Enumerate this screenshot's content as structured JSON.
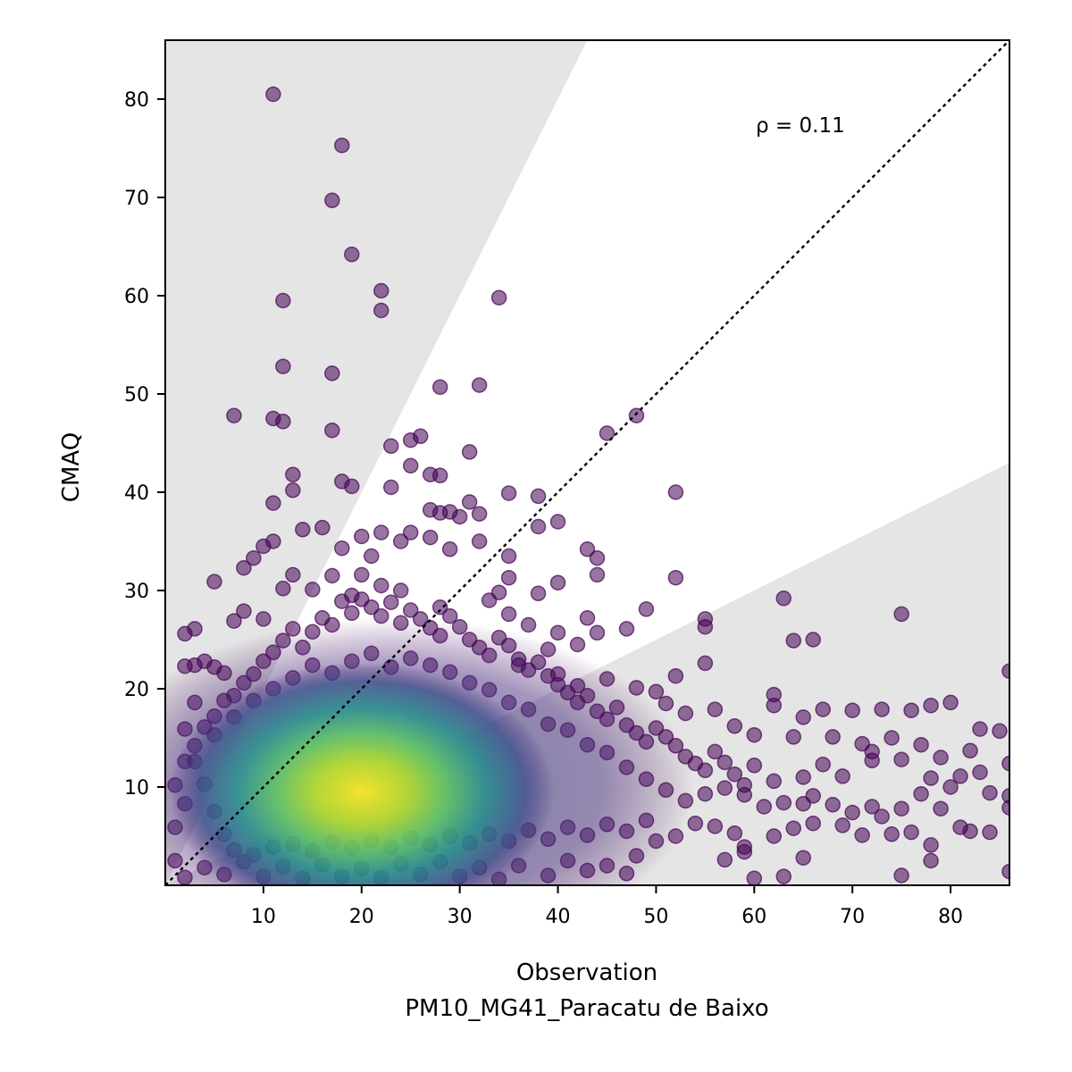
{
  "chart_data": {
    "type": "scatter",
    "title": "",
    "xlabel": "Observation",
    "xlabel_sub": "PM10_MG41_Paracatu de Baixo",
    "ylabel": "CMAQ",
    "xlim": [
      0,
      86
    ],
    "ylim": [
      0,
      86
    ],
    "xticks": [
      10,
      20,
      30,
      40,
      50,
      60,
      70,
      80
    ],
    "yticks": [
      10,
      20,
      30,
      40,
      50,
      60,
      70,
      80
    ],
    "annotation": "ρ = 0.11",
    "reference_line": "1:1",
    "shaded_regions": "outside factor-of-2 band (y > 2x and y < 0.5x)",
    "colormap": "viridis (point density)",
    "marker_color": "#440154",
    "density_center": [
      20,
      9.5
    ],
    "grid": false,
    "legend": "none",
    "points": [
      [
        11,
        80.5
      ],
      [
        18,
        75.3
      ],
      [
        17,
        69.7
      ],
      [
        19,
        64.2
      ],
      [
        22,
        60.5
      ],
      [
        22,
        58.5
      ],
      [
        34,
        59.8
      ],
      [
        12,
        59.5
      ],
      [
        12,
        52.8
      ],
      [
        17,
        52.1
      ],
      [
        28,
        50.7
      ],
      [
        32,
        50.9
      ],
      [
        7,
        47.8
      ],
      [
        11,
        47.5
      ],
      [
        12,
        47.2
      ],
      [
        17,
        46.3
      ],
      [
        48,
        47.8
      ],
      [
        45,
        46
      ],
      [
        26,
        45.7
      ],
      [
        25,
        45.3
      ],
      [
        23,
        44.7
      ],
      [
        31,
        44.1
      ],
      [
        25,
        42.7
      ],
      [
        13,
        41.8
      ],
      [
        18,
        41.1
      ],
      [
        19,
        40.6
      ],
      [
        23,
        40.5
      ],
      [
        13,
        40.2
      ],
      [
        27,
        41.8
      ],
      [
        28,
        41.7
      ],
      [
        11,
        38.9
      ],
      [
        35,
        39.9
      ],
      [
        38,
        39.6
      ],
      [
        40,
        37
      ],
      [
        52,
        40
      ],
      [
        31,
        39
      ],
      [
        27,
        38.2
      ],
      [
        29,
        38
      ],
      [
        30,
        37.5
      ],
      [
        32,
        37.8
      ],
      [
        28,
        37.9
      ],
      [
        14,
        36.2
      ],
      [
        16,
        36.4
      ],
      [
        25,
        35.9
      ],
      [
        20,
        35.5
      ],
      [
        22,
        35.9
      ],
      [
        24,
        35
      ],
      [
        11,
        35
      ],
      [
        10,
        34.5
      ],
      [
        18,
        34.3
      ],
      [
        27,
        35.4
      ],
      [
        29,
        34.2
      ],
      [
        32,
        35
      ],
      [
        38,
        36.5
      ],
      [
        9,
        33.3
      ],
      [
        21,
        33.5
      ],
      [
        35,
        33.5
      ],
      [
        43,
        34.2
      ],
      [
        44,
        33.3
      ],
      [
        8,
        32.3
      ],
      [
        13,
        31.6
      ],
      [
        17,
        31.5
      ],
      [
        20,
        31.6
      ],
      [
        44,
        31.6
      ],
      [
        52,
        31.3
      ],
      [
        35,
        31.3
      ],
      [
        22,
        30.5
      ],
      [
        24,
        30
      ],
      [
        34,
        29.8
      ],
      [
        40,
        30.8
      ],
      [
        38,
        29.7
      ],
      [
        5,
        30.9
      ],
      [
        12,
        30.2
      ],
      [
        15,
        30.1
      ],
      [
        19,
        29.5
      ],
      [
        28,
        28.3
      ],
      [
        33,
        29
      ],
      [
        63,
        29.2
      ],
      [
        49,
        28.1
      ],
      [
        35,
        27.6
      ],
      [
        37,
        26.5
      ],
      [
        40,
        25.7
      ],
      [
        43,
        27.2
      ],
      [
        44,
        25.7
      ],
      [
        47,
        26.1
      ],
      [
        55,
        27.1
      ],
      [
        55,
        26.3
      ],
      [
        64,
        24.9
      ],
      [
        66,
        25
      ],
      [
        75,
        27.6
      ],
      [
        8,
        27.9
      ],
      [
        7,
        26.9
      ],
      [
        2,
        25.6
      ],
      [
        3,
        26.1
      ],
      [
        10,
        27.1
      ],
      [
        39,
        24
      ],
      [
        42,
        24.5
      ],
      [
        55,
        22.6
      ],
      [
        52,
        21.3
      ],
      [
        45,
        21
      ],
      [
        48,
        20.1
      ],
      [
        2,
        22.3
      ],
      [
        3,
        22.4
      ],
      [
        4,
        22.8
      ],
      [
        5,
        22.2
      ],
      [
        6,
        21.6
      ],
      [
        36,
        22.4
      ],
      [
        40,
        21.5
      ],
      [
        42,
        20.3
      ],
      [
        50,
        19.7
      ],
      [
        51,
        18.5
      ],
      [
        53,
        17.5
      ],
      [
        56,
        17.9
      ],
      [
        58,
        16.2
      ],
      [
        60,
        15.3
      ],
      [
        62,
        18.3
      ],
      [
        62,
        19.4
      ],
      [
        65,
        17.1
      ],
      [
        67,
        17.9
      ],
      [
        70,
        17.8
      ],
      [
        73,
        17.9
      ],
      [
        76,
        17.8
      ],
      [
        78,
        18.3
      ],
      [
        80,
        18.6
      ],
      [
        86,
        21.8
      ],
      [
        64,
        15.1
      ],
      [
        68,
        15.1
      ],
      [
        71,
        14.4
      ],
      [
        72,
        13.6
      ],
      [
        74,
        15
      ],
      [
        77,
        14.3
      ],
      [
        79,
        13
      ],
      [
        82,
        13.7
      ],
      [
        83,
        15.9
      ],
      [
        85,
        15.7
      ],
      [
        86,
        12.4
      ],
      [
        60,
        12.2
      ],
      [
        62,
        10.6
      ],
      [
        65,
        11
      ],
      [
        67,
        12.3
      ],
      [
        69,
        11.1
      ],
      [
        72,
        12.7
      ],
      [
        75,
        12.8
      ],
      [
        78,
        10.9
      ],
      [
        80,
        10
      ],
      [
        81,
        11.1
      ],
      [
        83,
        11.5
      ],
      [
        84,
        9.4
      ],
      [
        86,
        9.1
      ],
      [
        57,
        9.9
      ],
      [
        59,
        9.2
      ],
      [
        61,
        8
      ],
      [
        63,
        8.4
      ],
      [
        65,
        8.3
      ],
      [
        66,
        9.1
      ],
      [
        68,
        8.2
      ],
      [
        70,
        7.4
      ],
      [
        72,
        8
      ],
      [
        73,
        7
      ],
      [
        75,
        7.8
      ],
      [
        77,
        9.3
      ],
      [
        79,
        7.8
      ],
      [
        81,
        5.9
      ],
      [
        82,
        5.5
      ],
      [
        84,
        5.4
      ],
      [
        86,
        7.9
      ],
      [
        54,
        6.3
      ],
      [
        56,
        6
      ],
      [
        58,
        5.3
      ],
      [
        59,
        3.9
      ],
      [
        62,
        5
      ],
      [
        64,
        5.8
      ],
      [
        66,
        6.3
      ],
      [
        69,
        6.1
      ],
      [
        71,
        5.1
      ],
      [
        74,
        5.2
      ],
      [
        76,
        5.4
      ],
      [
        78,
        4.1
      ],
      [
        86,
        1.4
      ],
      [
        75,
        1
      ],
      [
        78,
        2.5
      ],
      [
        65,
        2.8
      ],
      [
        63,
        0.9
      ],
      [
        60,
        0.7
      ],
      [
        59,
        3.4
      ],
      [
        57,
        2.6
      ],
      [
        52,
        5
      ],
      [
        50,
        4.5
      ],
      [
        48,
        3
      ],
      [
        47,
        1.2
      ],
      [
        45,
        2
      ],
      [
        43,
        1.5
      ],
      [
        41,
        2.5
      ],
      [
        39,
        1
      ],
      [
        36,
        2
      ],
      [
        34,
        0.6
      ],
      [
        32,
        1.8
      ],
      [
        30,
        0.9
      ],
      [
        28,
        2.4
      ],
      [
        26,
        1.1
      ],
      [
        24,
        2.2
      ],
      [
        22,
        0.8
      ],
      [
        20,
        1.7
      ],
      [
        18,
        0.9
      ],
      [
        16,
        2.1
      ],
      [
        14,
        0.7
      ],
      [
        12,
        1.9
      ],
      [
        10,
        0.9
      ],
      [
        8,
        2.4
      ],
      [
        6,
        1.1
      ],
      [
        4,
        1.8
      ],
      [
        2,
        0.8
      ],
      [
        1,
        2.5
      ],
      [
        1,
        5.9
      ],
      [
        2,
        8.3
      ],
      [
        1,
        10.2
      ],
      [
        2,
        12.6
      ],
      [
        3,
        14.2
      ],
      [
        2,
        15.9
      ],
      [
        3,
        18.6
      ],
      [
        4,
        16.1
      ],
      [
        5,
        17.2
      ],
      [
        6,
        18.8
      ],
      [
        7,
        19.3
      ],
      [
        8,
        20.6
      ],
      [
        9,
        21.5
      ],
      [
        10,
        22.8
      ],
      [
        11,
        23.7
      ],
      [
        12,
        24.9
      ],
      [
        13,
        26.1
      ],
      [
        14,
        24.2
      ],
      [
        15,
        25.8
      ],
      [
        16,
        27.2
      ],
      [
        17,
        26.5
      ],
      [
        18,
        28.9
      ],
      [
        19,
        27.7
      ],
      [
        20,
        29.1
      ],
      [
        21,
        28.3
      ],
      [
        22,
        27.4
      ],
      [
        23,
        28.8
      ],
      [
        24,
        26.7
      ],
      [
        25,
        28
      ],
      [
        26,
        27.1
      ],
      [
        27,
        26.2
      ],
      [
        28,
        25.4
      ],
      [
        29,
        27.4
      ],
      [
        30,
        26.3
      ],
      [
        31,
        25
      ],
      [
        32,
        24.2
      ],
      [
        33,
        23.4
      ],
      [
        34,
        25.2
      ],
      [
        35,
        24.4
      ],
      [
        36,
        23
      ],
      [
        37,
        21.9
      ],
      [
        38,
        22.7
      ],
      [
        39,
        21.3
      ],
      [
        40,
        20.4
      ],
      [
        41,
        19.6
      ],
      [
        42,
        18.6
      ],
      [
        43,
        19.3
      ],
      [
        44,
        17.7
      ],
      [
        45,
        16.9
      ],
      [
        46,
        18.1
      ],
      [
        47,
        16.3
      ],
      [
        48,
        15.5
      ],
      [
        49,
        14.6
      ],
      [
        50,
        16
      ],
      [
        51,
        15.1
      ],
      [
        52,
        14.2
      ],
      [
        53,
        13.1
      ],
      [
        54,
        12.4
      ],
      [
        55,
        11.7
      ],
      [
        56,
        13.6
      ],
      [
        57,
        12.5
      ],
      [
        58,
        11.3
      ],
      [
        59,
        10.2
      ],
      [
        55,
        9.3
      ],
      [
        53,
        8.6
      ],
      [
        51,
        9.7
      ],
      [
        49,
        10.8
      ],
      [
        47,
        12
      ],
      [
        45,
        13.5
      ],
      [
        43,
        14.3
      ],
      [
        41,
        15.8
      ],
      [
        39,
        16.4
      ],
      [
        37,
        17.9
      ],
      [
        35,
        18.6
      ],
      [
        33,
        19.9
      ],
      [
        31,
        20.6
      ],
      [
        29,
        21.7
      ],
      [
        27,
        22.4
      ],
      [
        25,
        23.1
      ],
      [
        23,
        22.2
      ],
      [
        21,
        23.6
      ],
      [
        19,
        22.8
      ],
      [
        17,
        21.6
      ],
      [
        15,
        22.4
      ],
      [
        13,
        21.1
      ],
      [
        11,
        20
      ],
      [
        9,
        18.8
      ],
      [
        7,
        17.1
      ],
      [
        5,
        15.3
      ],
      [
        3,
        12.6
      ],
      [
        4,
        10.3
      ],
      [
        5,
        7.5
      ],
      [
        6,
        5.2
      ],
      [
        7,
        3.6
      ],
      [
        9,
        3.1
      ],
      [
        11,
        3.9
      ],
      [
        13,
        4.2
      ],
      [
        15,
        3.5
      ],
      [
        17,
        4.4
      ],
      [
        19,
        3.8
      ],
      [
        21,
        4.6
      ],
      [
        23,
        3.9
      ],
      [
        25,
        4.8
      ],
      [
        27,
        4.1
      ],
      [
        29,
        5
      ],
      [
        31,
        4.3
      ],
      [
        33,
        5.2
      ],
      [
        35,
        4.5
      ],
      [
        37,
        5.6
      ],
      [
        39,
        4.7
      ],
      [
        41,
        5.9
      ],
      [
        43,
        5.1
      ],
      [
        45,
        6.2
      ],
      [
        47,
        5.5
      ],
      [
        49,
        6.6
      ]
    ]
  }
}
